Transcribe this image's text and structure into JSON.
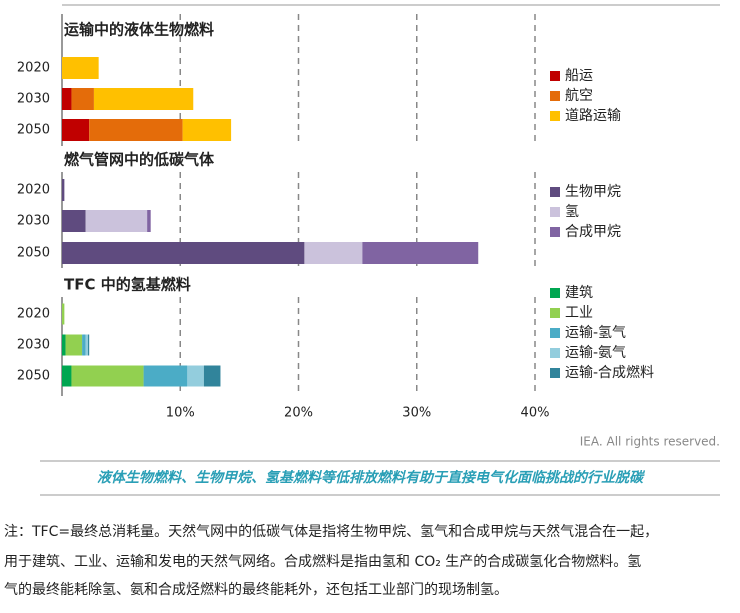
{
  "chart_data": [
    {
      "type": "bar",
      "orientation": "horizontal",
      "title": "运输中的液体生物燃料",
      "categories": [
        "2020",
        "2030",
        "2050"
      ],
      "series": [
        {
          "name": "船运",
          "color": "#c00000",
          "values": [
            0,
            0.8,
            2.3
          ]
        },
        {
          "name": "航空",
          "color": "#e46c0a",
          "values": [
            0,
            1.9,
            7.9
          ]
        },
        {
          "name": "道路运输",
          "color": "#ffc000",
          "values": [
            3.1,
            8.4,
            4.1
          ]
        }
      ],
      "xlim": [
        0,
        40
      ],
      "xticks": [
        10,
        20,
        30,
        40
      ],
      "grid": true
    },
    {
      "type": "bar",
      "orientation": "horizontal",
      "title": "燃气管网中的低碳气体",
      "categories": [
        "2020",
        "2030",
        "2050"
      ],
      "series": [
        {
          "name": "生物甲烷",
          "color": "#5f4b7f",
          "values": [
            0.2,
            2.0,
            20.5
          ]
        },
        {
          "name": "氢",
          "color": "#cbc2dc",
          "values": [
            0,
            5.2,
            4.9
          ]
        },
        {
          "name": "合成甲烷",
          "color": "#8064a2",
          "values": [
            0,
            0.3,
            9.8
          ]
        }
      ],
      "xlim": [
        0,
        40
      ],
      "xticks": [
        10,
        20,
        30,
        40
      ],
      "grid": true
    },
    {
      "type": "bar",
      "orientation": "horizontal",
      "title": "TFC 中的氢基燃料",
      "categories": [
        "2020",
        "2030",
        "2050"
      ],
      "series": [
        {
          "name": "建筑",
          "color": "#00a651",
          "values": [
            0,
            0.3,
            0.8
          ]
        },
        {
          "name": "工业",
          "color": "#92d050",
          "values": [
            0.2,
            1.4,
            6.1
          ]
        },
        {
          "name": "运输-氢气",
          "color": "#4bacc6",
          "values": [
            0,
            0.3,
            3.7
          ]
        },
        {
          "name": "运输-氨气",
          "color": "#93cddd",
          "values": [
            0,
            0.2,
            1.4
          ]
        },
        {
          "name": "运输-合成燃料",
          "color": "#31849b",
          "values": [
            0,
            0.1,
            1.4
          ]
        }
      ],
      "xlim": [
        0,
        40
      ],
      "xticks": [
        {
          "value": 10,
          "label": "10%"
        },
        {
          "value": 20,
          "label": "20%"
        },
        {
          "value": 30,
          "label": "30%"
        },
        {
          "value": 40,
          "label": "40%"
        }
      ],
      "grid": true
    }
  ],
  "source": "IEA. All rights reserved.",
  "caption": "液体生物燃料、生物甲烷、氢基燃料等低排放燃料有助于直接电气化面临挑战的行业脱碳",
  "note": [
    "注：TFC=最终总消耗量。天然气网中的低碳气体是指将生物甲烷、氢气和合成甲烷与天然气混合在一起，",
    "用于建筑、工业、运输和发电的天然气网络。合成燃料是指由氢和 CO₂ 生产的合成碳氢化合物燃料。氢",
    "气的最终能耗除氢、氨和合成烃燃料的最终能耗外，还包括工业部门的现场制氢。"
  ]
}
